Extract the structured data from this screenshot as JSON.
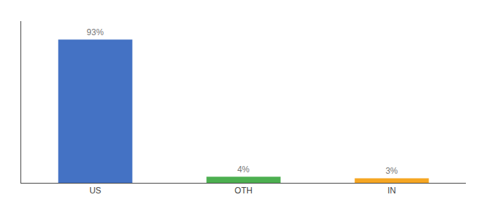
{
  "chart_data": {
    "type": "bar",
    "categories": [
      "US",
      "OTH",
      "IN"
    ],
    "values": [
      93,
      4,
      3
    ],
    "value_labels": [
      "93%",
      "4%",
      "3%"
    ],
    "colors": [
      "#4472c4",
      "#4caf50",
      "#f5a623"
    ],
    "ylim": [
      0,
      105
    ],
    "grid": false,
    "tick_labels": "x"
  }
}
